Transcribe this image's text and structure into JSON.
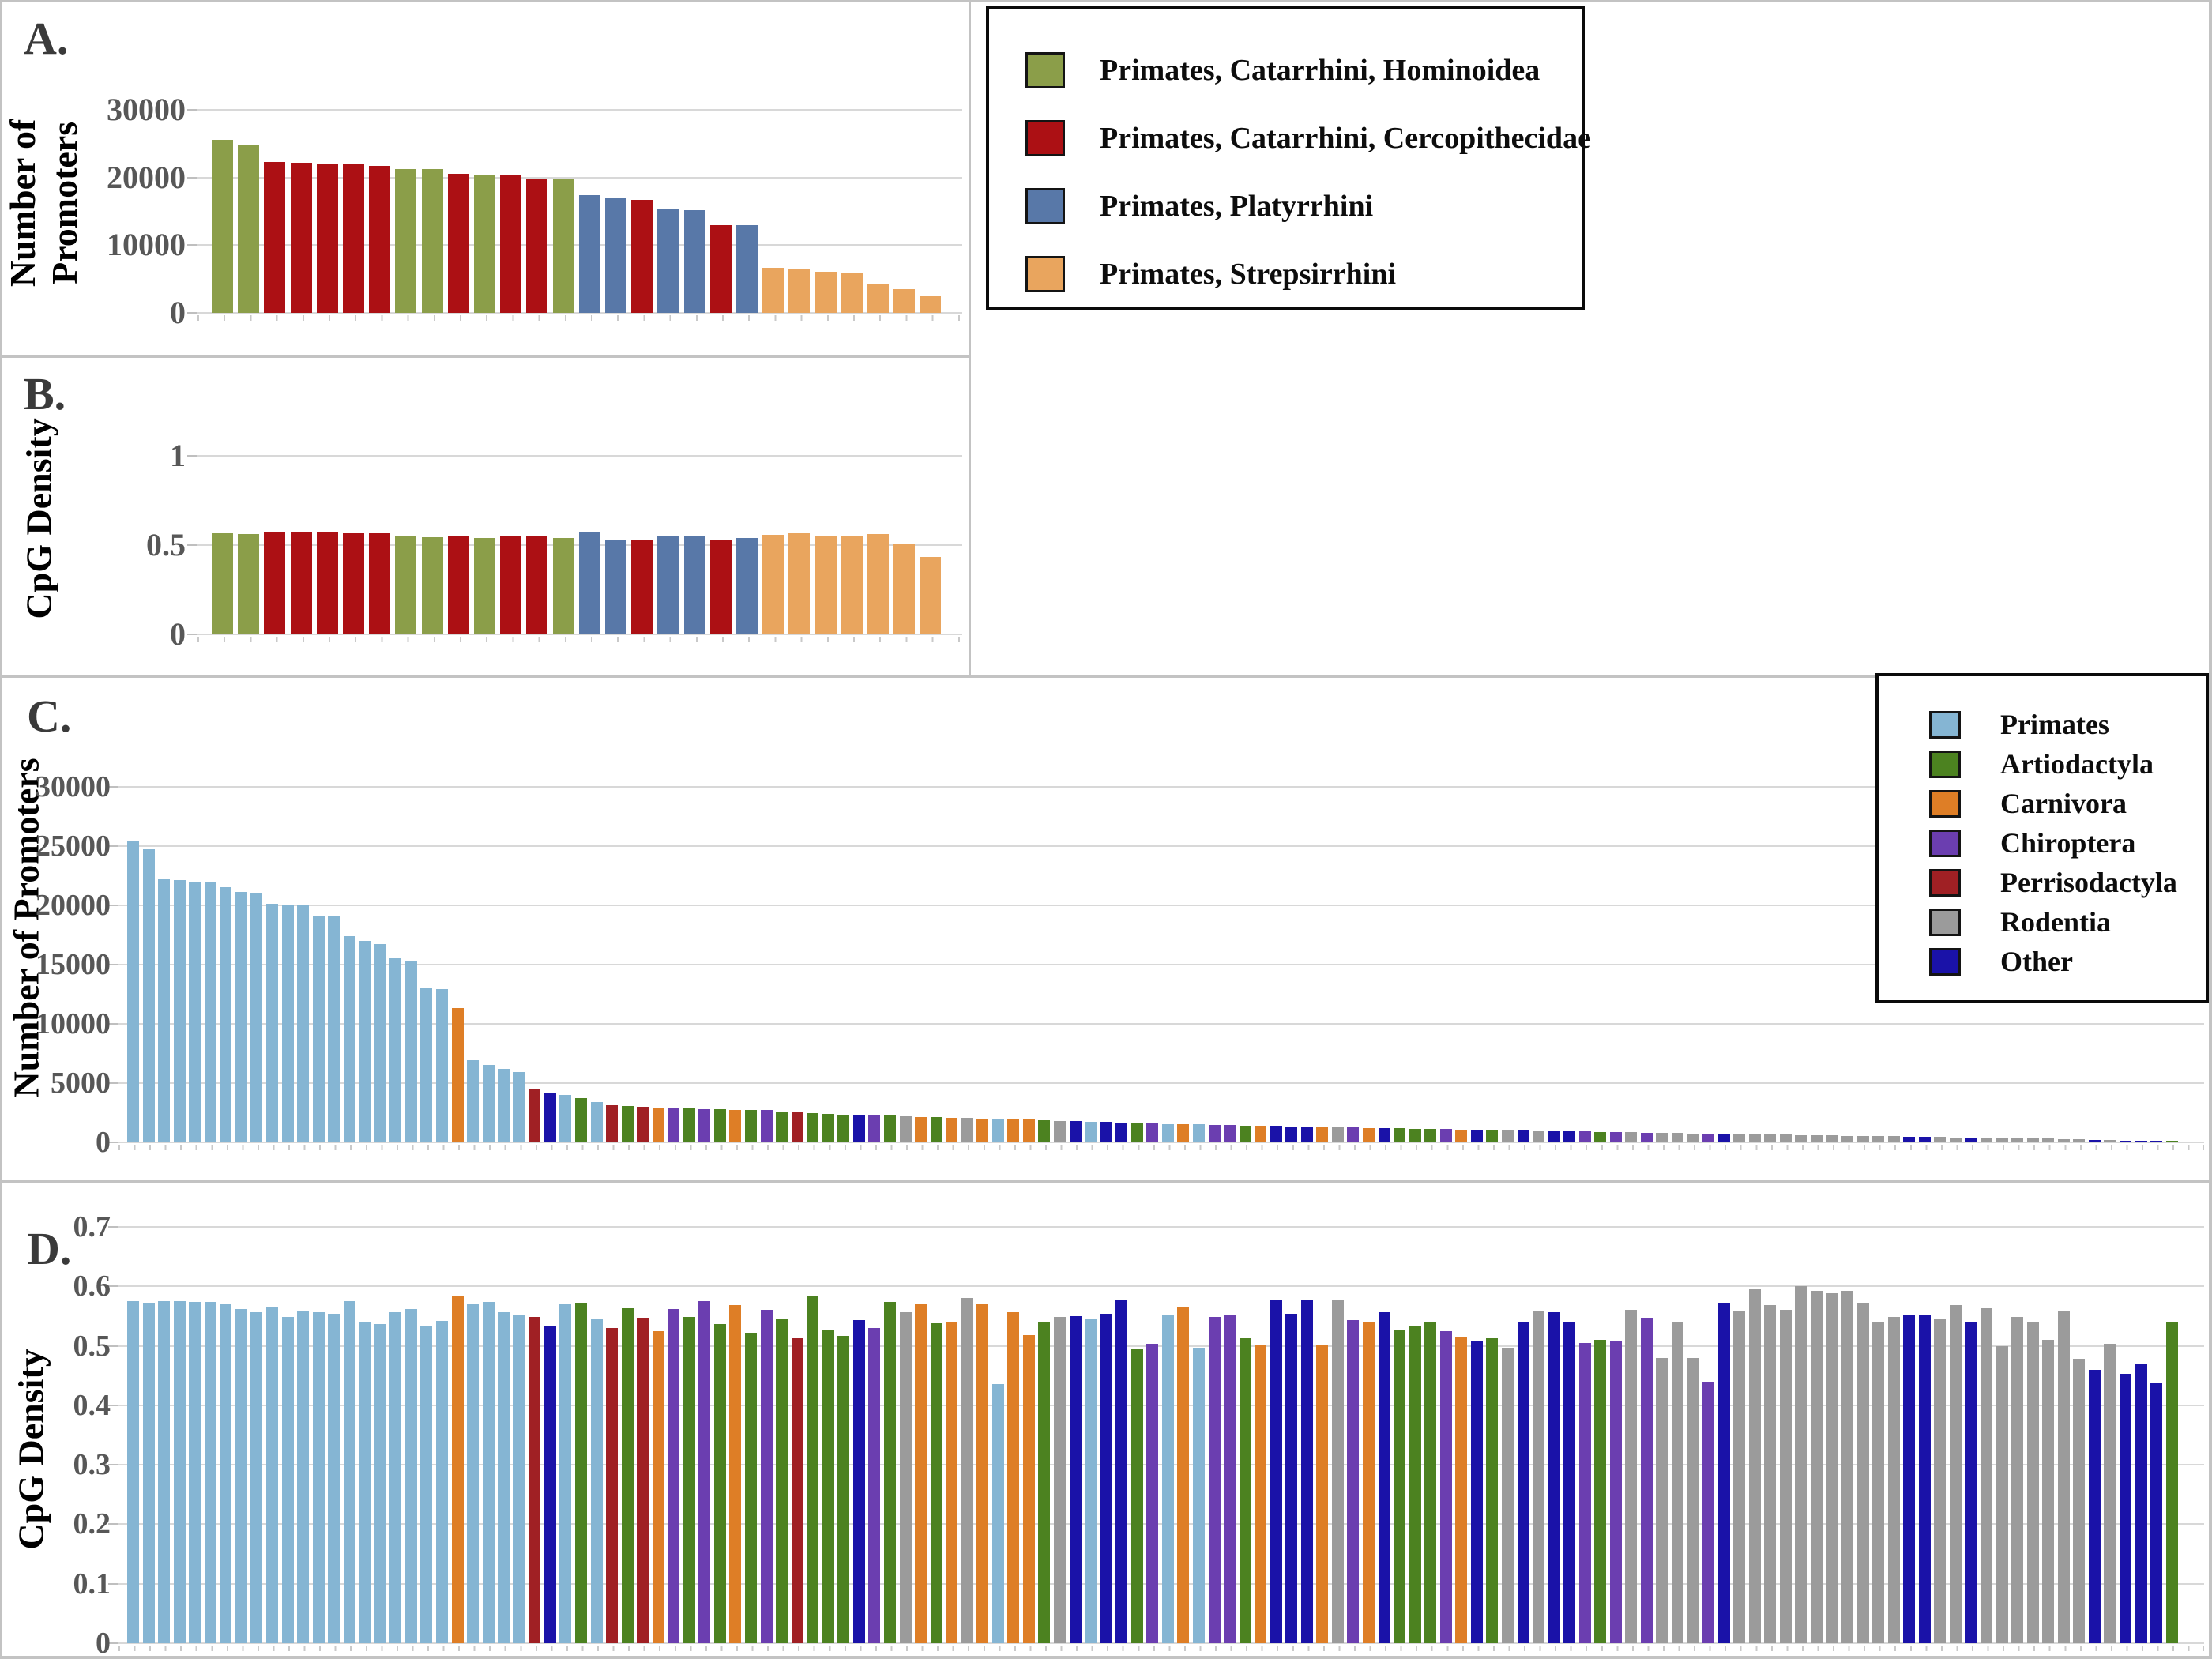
{
  "group_colors": {
    "H": "#8b9e49",
    "Ce": "#ac1014",
    "Pl": "#5878a8",
    "St": "#e9a55e",
    "P": "#85b5d3",
    "Ar": "#4c8220",
    "Ca": "#de7e26",
    "Ch": "#6b3eb0",
    "Pe": "#a02024",
    "Ro": "#9b9b9b",
    "O": "#1a12a8"
  },
  "legend_primates": {
    "items": [
      {
        "label": "Primates, Catarrhini, Hominoidea",
        "group": "H"
      },
      {
        "label": "Primates, Catarrhini, Cercopithecidae",
        "group": "Ce"
      },
      {
        "label": "Primates, Platyrrhini",
        "group": "Pl"
      },
      {
        "label": "Primates, Strepsirrhini",
        "group": "St"
      }
    ]
  },
  "legend_orders": {
    "items": [
      {
        "label": "Primates",
        "group": "P"
      },
      {
        "label": "Artiodactyla",
        "group": "Ar"
      },
      {
        "label": "Carnivora",
        "group": "Ca"
      },
      {
        "label": "Chiroptera",
        "group": "Ch"
      },
      {
        "label": "Perrisodactyla",
        "group": "Pe"
      },
      {
        "label": "Rodentia",
        "group": "Ro"
      },
      {
        "label": "Other",
        "group": "O"
      }
    ]
  },
  "panels": {
    "a": {
      "letter": "A.",
      "y_title_line1": "Number of",
      "y_title_line2": "Promoters"
    },
    "b": {
      "letter": "B.",
      "y_title": "CpG Density"
    },
    "c": {
      "letter": "C.",
      "y_title": "Number of Promoters"
    },
    "d": {
      "letter": "D.",
      "y_title": "CpG Density"
    }
  },
  "ab_groups": [
    "H",
    "H",
    "Ce",
    "Ce",
    "Ce",
    "Ce",
    "Ce",
    "H",
    "H",
    "Ce",
    "H",
    "Ce",
    "Ce",
    "H",
    "Pl",
    "Pl",
    "Ce",
    "Pl",
    "Pl",
    "Ce",
    "Pl",
    "St",
    "St",
    "St",
    "St",
    "St",
    "St",
    "St"
  ],
  "cd_groups": [
    "P",
    "P",
    "P",
    "P",
    "P",
    "P",
    "P",
    "P",
    "P",
    "P",
    "P",
    "P",
    "P",
    "P",
    "P",
    "P",
    "P",
    "P",
    "P",
    "P",
    "P",
    "Ca",
    "P",
    "P",
    "P",
    "P",
    "Pe",
    "O",
    "P",
    "Ar",
    "P",
    "Pe",
    "Ar",
    "Pe",
    "Ca",
    "Ch",
    "Ar",
    "Ch",
    "Ar",
    "Ca",
    "Ar",
    "Ch",
    "Ar",
    "Pe",
    "Ar",
    "Ar",
    "Ar",
    "O",
    "Ch",
    "Ar",
    "Ro",
    "Ca",
    "Ar",
    "Ca",
    "Ro",
    "Ca",
    "P",
    "Ca",
    "Ca",
    "Ar",
    "Ro",
    "O",
    "P",
    "O",
    "O",
    "Ar",
    "Ch",
    "P",
    "Ca",
    "P",
    "Ch",
    "Ch",
    "Ar",
    "Ca",
    "O",
    "O",
    "O",
    "Ca",
    "Ro",
    "Ch",
    "Ca",
    "O",
    "Ar",
    "Ar",
    "Ar",
    "Ch",
    "Ca",
    "O",
    "Ar",
    "Ro",
    "O",
    "Ro",
    "O",
    "O",
    "Ch",
    "Ar",
    "Ch",
    "Ro",
    "Ch",
    "Ro",
    "Ro",
    "Ro",
    "Ch",
    "O",
    "Ro",
    "Ro",
    "Ro",
    "Ro",
    "Ro",
    "Ro",
    "Ro",
    "Ro",
    "Ro",
    "Ro",
    "Ro",
    "O",
    "O",
    "Ro",
    "Ro",
    "O",
    "Ro",
    "Ro",
    "Ro",
    "Ro",
    "Ro",
    "Ro",
    "Ro",
    "O",
    "Ro",
    "O",
    "O",
    "O",
    "Ar"
  ],
  "chart_data": [
    {
      "id": "a",
      "type": "bar",
      "title": "A",
      "xlabel": "",
      "ylabel": "Number of Promoters",
      "ylim": [
        0,
        30000
      ],
      "grid": true,
      "legend_position": "top-right",
      "yticks": [
        {
          "label": "30000",
          "v": 30000
        },
        {
          "label": "20000",
          "v": 20000
        },
        {
          "label": "10000",
          "v": 10000
        },
        {
          "label": "0",
          "v": 0
        }
      ],
      "groups_key": "ab_groups",
      "values": [
        25600,
        24700,
        22300,
        22200,
        22100,
        22000,
        21700,
        21300,
        21200,
        20500,
        20400,
        20300,
        19900,
        19800,
        17400,
        17100,
        16700,
        15400,
        15200,
        13000,
        12900,
        6700,
        6400,
        6100,
        5900,
        4200,
        3550,
        2400
      ]
    },
    {
      "id": "b",
      "type": "bar",
      "title": "B",
      "xlabel": "",
      "ylabel": "CpG Density",
      "ylim": [
        0,
        1
      ],
      "grid": true,
      "yticks": [
        {
          "label": "1",
          "v": 1
        },
        {
          "label": "0.5",
          "v": 0.5
        },
        {
          "label": "0",
          "v": 0
        }
      ],
      "groups_key": "ab_groups",
      "values": [
        0.565,
        0.562,
        0.57,
        0.57,
        0.57,
        0.565,
        0.565,
        0.553,
        0.546,
        0.553,
        0.54,
        0.553,
        0.553,
        0.54,
        0.57,
        0.533,
        0.53,
        0.553,
        0.553,
        0.53,
        0.54,
        0.558,
        0.568,
        0.553,
        0.55,
        0.56,
        0.508,
        0.432
      ]
    },
    {
      "id": "c",
      "type": "bar",
      "title": "C",
      "xlabel": "",
      "ylabel": "Number of Promoters",
      "ylim": [
        0,
        30000
      ],
      "grid": true,
      "legend_position": "top-right",
      "yticks": [
        {
          "label": "30000",
          "v": 30000
        },
        {
          "label": "25000",
          "v": 25000
        },
        {
          "label": "20000",
          "v": 20000
        },
        {
          "label": "15000",
          "v": 15000
        },
        {
          "label": "10000",
          "v": 10000
        },
        {
          "label": "5000",
          "v": 5000
        },
        {
          "label": "0",
          "v": 0
        }
      ],
      "groups_key": "cd_groups",
      "values": [
        25400,
        24700,
        22200,
        22100,
        22000,
        21900,
        21500,
        21100,
        21050,
        20100,
        20080,
        20000,
        19100,
        19050,
        17400,
        17000,
        16700,
        15500,
        15300,
        13000,
        12900,
        11300,
        6900,
        6500,
        6200,
        5900,
        4500,
        4200,
        4000,
        3700,
        3400,
        3150,
        3050,
        3000,
        2950,
        2900,
        2850,
        2820,
        2780,
        2750,
        2720,
        2700,
        2600,
        2500,
        2450,
        2400,
        2350,
        2300,
        2280,
        2250,
        2200,
        2150,
        2100,
        2080,
        2050,
        2020,
        1980,
        1950,
        1900,
        1850,
        1800,
        1780,
        1750,
        1700,
        1650,
        1600,
        1580,
        1550,
        1520,
        1500,
        1480,
        1450,
        1420,
        1400,
        1380,
        1350,
        1320,
        1300,
        1280,
        1250,
        1230,
        1200,
        1180,
        1150,
        1120,
        1100,
        1080,
        1050,
        1020,
        1000,
        980,
        960,
        940,
        920,
        900,
        880,
        860,
        840,
        820,
        800,
        780,
        760,
        740,
        720,
        700,
        680,
        660,
        640,
        620,
        600,
        580,
        560,
        540,
        520,
        500,
        480,
        460,
        440,
        420,
        400,
        380,
        360,
        340,
        320,
        300,
        280,
        260,
        230,
        200,
        160,
        130,
        100,
        70
      ]
    },
    {
      "id": "d",
      "type": "bar",
      "title": "D",
      "xlabel": "",
      "ylabel": "CpG Density",
      "ylim": [
        0,
        0.7
      ],
      "grid": true,
      "yticks": [
        {
          "label": "0.7",
          "v": 0.7
        },
        {
          "label": "0.6",
          "v": 0.6
        },
        {
          "label": "0.5",
          "v": 0.5
        },
        {
          "label": "0.4",
          "v": 0.4
        },
        {
          "label": "0.3",
          "v": 0.3
        },
        {
          "label": "0.2",
          "v": 0.2
        },
        {
          "label": "0.1",
          "v": 0.1
        },
        {
          "label": "0",
          "v": 0
        }
      ],
      "groups_key": "cd_groups",
      "values": [
        0.575,
        0.573,
        0.575,
        0.575,
        0.574,
        0.574,
        0.571,
        0.562,
        0.556,
        0.564,
        0.548,
        0.559,
        0.557,
        0.554,
        0.575,
        0.541,
        0.537,
        0.557,
        0.562,
        0.533,
        0.542,
        0.585,
        0.57,
        0.574,
        0.557,
        0.551,
        0.549,
        0.532,
        0.57,
        0.572,
        0.546,
        0.53,
        0.563,
        0.547,
        0.525,
        0.562,
        0.549,
        0.575,
        0.537,
        0.568,
        0.522,
        0.56,
        0.546,
        0.513,
        0.583,
        0.527,
        0.517,
        0.543,
        0.53,
        0.574,
        0.556,
        0.571,
        0.538,
        0.539,
        0.581,
        0.57,
        0.436,
        0.556,
        0.518,
        0.541,
        0.549,
        0.55,
        0.544,
        0.554,
        0.577,
        0.494,
        0.504,
        0.552,
        0.566,
        0.497,
        0.548,
        0.552,
        0.513,
        0.502,
        0.578,
        0.554,
        0.576,
        0.501,
        0.577,
        0.543,
        0.54,
        0.556,
        0.527,
        0.533,
        0.54,
        0.525,
        0.516,
        0.507,
        0.513,
        0.497,
        0.54,
        0.558,
        0.556,
        0.54,
        0.505,
        0.51,
        0.508,
        0.56,
        0.547,
        0.48,
        0.54,
        0.48,
        0.44,
        0.572,
        0.558,
        0.595,
        0.568,
        0.561,
        0.6,
        0.592,
        0.588,
        0.592,
        0.572,
        0.54,
        0.549,
        0.551,
        0.552,
        0.545,
        0.568,
        0.54,
        0.563,
        0.5,
        0.548,
        0.54,
        0.51,
        0.559,
        0.478,
        0.459,
        0.503,
        0.453,
        0.47,
        0.438,
        0.541
      ]
    }
  ]
}
